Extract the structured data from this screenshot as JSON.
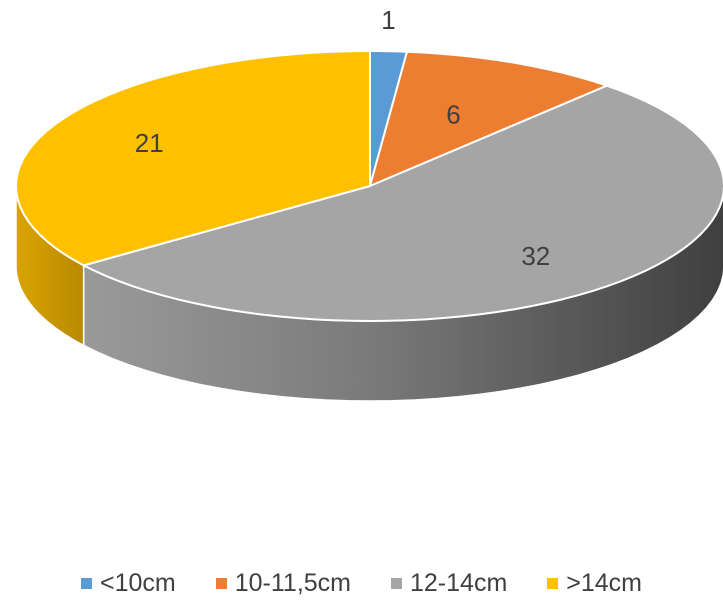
{
  "chart_data": {
    "type": "pie",
    "style": "3d",
    "categories": [
      "<10cm",
      "10-11,5cm",
      "12-14cm",
      ">14cm"
    ],
    "values": [
      1,
      6,
      32,
      21
    ],
    "data_labels": [
      "1",
      "6",
      "32",
      "21"
    ],
    "colors": [
      "#5B9BD5",
      "#ED7D31",
      "#A5A5A5",
      "#FFC000"
    ],
    "legend_position": "bottom",
    "title": ""
  },
  "legend": {
    "items": [
      {
        "label": "<10cm",
        "color": "#5B9BD5"
      },
      {
        "label": "10-11,5cm",
        "color": "#ED7D31"
      },
      {
        "label": "12-14cm",
        "color": "#A5A5A5"
      },
      {
        "label": ">14cm",
        "color": "#FFC000"
      }
    ]
  }
}
